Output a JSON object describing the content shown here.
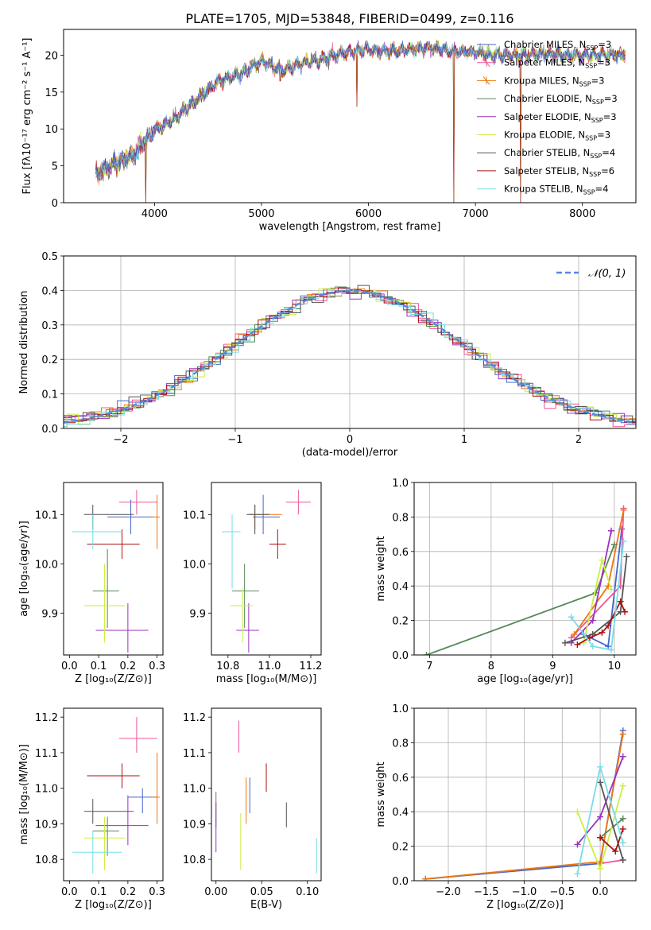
{
  "figure_title": "PLATE=1705, MJD=53848, FIBERID=0499, z=0.116",
  "colors": [
    "#4466cc",
    "#ee5599",
    "#ee7711",
    "#558855",
    "#9933bb",
    "#ccee44",
    "#555555",
    "#aa1111",
    "#77dde8"
  ],
  "chart_data": [
    {
      "type": "line",
      "id": "spectrum",
      "xlabel": "wavelength [Angstrom, rest frame]",
      "ylabel": "Flux [fλ10⁻¹⁷ erg cm⁻² s⁻¹ A⁻¹]",
      "xlim": [
        3150,
        8500
      ],
      "ylim": [
        0,
        23.5
      ],
      "xticks": [
        4000,
        5000,
        6000,
        7000,
        8000
      ],
      "yticks": [
        0,
        5,
        10,
        15,
        20
      ],
      "legend_position": "upper right",
      "series": [
        {
          "name": "Chabrier MILES, N",
          "sub": "SSP",
          "eq": "=3"
        },
        {
          "name": "Salpeter MILES, N",
          "sub": "SSP",
          "eq": "=3"
        },
        {
          "name": "Kroupa MILES, N",
          "sub": "SSP",
          "eq": "=3"
        },
        {
          "name": "Chabrier ELODIE, N",
          "sub": "SSP",
          "eq": "=3"
        },
        {
          "name": "Salpeter ELODIE, N",
          "sub": "SSP",
          "eq": "=3"
        },
        {
          "name": "Kroupa ELODIE, N",
          "sub": "SSP",
          "eq": "=3"
        },
        {
          "name": "Chabrier STELIB, N",
          "sub": "SSP",
          "eq": "=4"
        },
        {
          "name": "Salpeter STELIB, N",
          "sub": "SSP",
          "eq": "=6"
        },
        {
          "name": "Kroupa STELIB, N",
          "sub": "SSP",
          "eq": "=4"
        }
      ],
      "envelope": {
        "x": [
          3450,
          3600,
          3800,
          4000,
          4200,
          4400,
          4600,
          4800,
          5000,
          5200,
          5400,
          5600,
          5800,
          6000,
          6200,
          6400,
          6600,
          6800,
          7000,
          7200,
          7400,
          7600,
          7800,
          8000,
          8200,
          8400
        ],
        "y": [
          4.0,
          5.0,
          6.5,
          9.8,
          11.5,
          14.0,
          16.5,
          17.5,
          19.2,
          18.0,
          19.0,
          19.5,
          20.5,
          20.8,
          20.5,
          20.8,
          21.0,
          20.5,
          20.3,
          20.0,
          20.0,
          20.2,
          20.0,
          20.0,
          20.0,
          20.0
        ]
      },
      "drops": [
        [
          3920,
          0
        ],
        [
          6800,
          0
        ],
        [
          7420,
          0
        ],
        [
          5890,
          13.0
        ],
        [
          5175,
          16.5
        ]
      ]
    },
    {
      "type": "histogram",
      "id": "residuals",
      "xlabel": "(data-model)/error",
      "ylabel": "Normed distribution",
      "xlim": [
        -2.5,
        2.5
      ],
      "ylim": [
        0,
        0.5
      ],
      "xticks": [
        -2,
        -1,
        0,
        1,
        2
      ],
      "xticklabels": [
        "−2",
        "−1",
        "0",
        "1",
        "2"
      ],
      "yticks": [
        0.0,
        0.1,
        0.2,
        0.3,
        0.4,
        0.5
      ],
      "yticklabels": [
        "0.0",
        "0.1",
        "0.2",
        "0.3",
        "0.4",
        "0.5"
      ],
      "grid": true,
      "bin_width": 0.1,
      "reference_curve": {
        "name": "𝒩(0, 1)",
        "mean": 0,
        "sigma": 1,
        "legend_position": "upper right"
      }
    },
    {
      "type": "scatter",
      "id": "age-vs-Z",
      "xlabel": "Z [log₁₀(Z/Z⊙)]",
      "ylabel": "age  [log₁₀(age/yr)]",
      "xlim": [
        -0.02,
        0.32
      ],
      "ylim": [
        9.815,
        10.165
      ],
      "xticks": [
        0.0,
        0.1,
        0.2,
        0.3
      ],
      "xticklabels": [
        "0.0",
        "0.1",
        "0.2",
        "0.3"
      ],
      "yticks": [
        9.9,
        10.0,
        10.1
      ],
      "yticklabels": [
        "9.9",
        "10.0",
        "10.1"
      ],
      "points": [
        {
          "x": 0.21,
          "y": 10.095,
          "xerr": [
            0.13,
            0.29
          ],
          "yerr": [
            10.06,
            10.13
          ]
        },
        {
          "x": 0.23,
          "y": 10.125,
          "xerr": [
            0.17,
            0.3
          ],
          "yerr": [
            10.1,
            10.15
          ]
        },
        {
          "x": 0.3,
          "y": 10.095,
          "xerr": [
            0.28,
            0.31
          ],
          "yerr": [
            10.03,
            10.14
          ]
        },
        {
          "x": 0.13,
          "y": 9.945,
          "xerr": [
            0.08,
            0.17
          ],
          "yerr": [
            9.87,
            10.03
          ]
        },
        {
          "x": 0.2,
          "y": 9.865,
          "xerr": [
            0.09,
            0.27
          ],
          "yerr": [
            9.82,
            9.92
          ]
        },
        {
          "x": 0.12,
          "y": 9.915,
          "xerr": [
            0.05,
            0.19
          ],
          "yerr": [
            9.84,
            10.0
          ]
        },
        {
          "x": 0.08,
          "y": 10.1,
          "xerr": [
            0.05,
            0.22
          ],
          "yerr": [
            10.07,
            10.12
          ]
        },
        {
          "x": 0.18,
          "y": 10.04,
          "xerr": [
            0.06,
            0.24
          ],
          "yerr": [
            10.01,
            10.07
          ]
        },
        {
          "x": 0.08,
          "y": 10.065,
          "xerr": [
            0.01,
            0.18
          ],
          "yerr": [
            10.03,
            10.1
          ]
        }
      ]
    },
    {
      "type": "scatter",
      "id": "age-vs-mass",
      "xlabel": "mass [log₁₀(M/M⊙)]",
      "ylabel": "",
      "xlim": [
        10.72,
        11.25
      ],
      "ylim": [
        9.815,
        10.165
      ],
      "xticks": [
        10.8,
        11.0,
        11.2
      ],
      "xticklabels": [
        "10.8",
        "11.0",
        "11.2"
      ],
      "yticks": [
        9.9,
        10.0,
        10.1
      ],
      "yticklabels": [
        "9.9",
        "10.0",
        "10.1"
      ],
      "points": [
        {
          "x": 10.97,
          "y": 10.095,
          "xerr": [
            10.92,
            11.05
          ],
          "yerr": [
            10.06,
            10.14
          ]
        },
        {
          "x": 11.14,
          "y": 10.125,
          "xerr": [
            11.08,
            11.2
          ],
          "yerr": [
            10.1,
            10.15
          ]
        },
        {
          "x": 10.93,
          "y": 10.1,
          "xerr": [
            10.9,
            11.06
          ],
          "yerr": [
            10.07,
            10.12
          ]
        },
        {
          "x": 10.88,
          "y": 9.945,
          "xerr": [
            10.82,
            10.95
          ],
          "yerr": [
            9.87,
            10.0
          ]
        },
        {
          "x": 10.9,
          "y": 9.865,
          "xerr": [
            10.84,
            10.95
          ],
          "yerr": [
            9.82,
            9.92
          ]
        },
        {
          "x": 10.87,
          "y": 9.915,
          "xerr": [
            10.81,
            10.92
          ],
          "yerr": [
            9.84,
            9.95
          ]
        },
        {
          "x": 10.93,
          "y": 10.1,
          "xerr": [
            10.89,
            11.0
          ],
          "yerr": [
            10.06,
            10.12
          ]
        },
        {
          "x": 11.04,
          "y": 10.04,
          "xerr": [
            11.0,
            11.08
          ],
          "yerr": [
            10.01,
            10.07
          ]
        },
        {
          "x": 10.82,
          "y": 10.065,
          "xerr": [
            10.77,
            10.86
          ],
          "yerr": [
            9.95,
            10.1
          ]
        }
      ]
    },
    {
      "type": "line",
      "id": "massweight-vs-age",
      "xlabel": "age  [log₁₀(age/yr)]",
      "ylabel": "mass weight",
      "xlim": [
        6.75,
        10.35
      ],
      "ylim": [
        0,
        1
      ],
      "xticks": [
        7,
        8,
        9,
        10
      ],
      "xticklabels": [
        "7",
        "8",
        "9",
        "10"
      ],
      "yticks": [
        0.0,
        0.2,
        0.4,
        0.6,
        0.8,
        1.0
      ],
      "yticklabels": [
        "0.0",
        "0.2",
        "0.4",
        "0.6",
        "0.8",
        "1.0"
      ],
      "grid": true,
      "series": [
        {
          "x": [
            9.5,
            9.9,
            10.12
          ],
          "y": [
            0.12,
            0.05,
            0.73
          ]
        },
        {
          "x": [
            9.3,
            10.1,
            10.15
          ],
          "y": [
            0.1,
            0.4,
            0.85
          ]
        },
        {
          "x": [
            9.35,
            9.9,
            10.15
          ],
          "y": [
            0.12,
            0.4,
            0.84
          ]
        },
        {
          "x": [
            6.95,
            9.7,
            10.0
          ],
          "y": [
            0.0,
            0.36,
            0.64
          ]
        },
        {
          "x": [
            9.3,
            9.65,
            9.95
          ],
          "y": [
            0.07,
            0.2,
            0.72
          ]
        },
        {
          "x": [
            9.5,
            9.8,
            9.95
          ],
          "y": [
            0.07,
            0.55,
            0.38
          ]
        },
        {
          "x": [
            9.2,
            9.65,
            10.1,
            10.2
          ],
          "y": [
            0.07,
            0.12,
            0.25,
            0.57
          ]
        },
        {
          "x": [
            9.4,
            9.6,
            9.8,
            9.9,
            10.1,
            10.17
          ],
          "y": [
            0.06,
            0.1,
            0.13,
            0.17,
            0.31,
            0.25
          ]
        },
        {
          "x": [
            9.3,
            9.65,
            9.95,
            10.15
          ],
          "y": [
            0.22,
            0.05,
            0.03,
            0.66
          ]
        }
      ]
    },
    {
      "type": "scatter",
      "id": "mass-vs-Z",
      "xlabel": "Z [log₁₀(Z/Z⊙)]",
      "ylabel": "mass [log₁₀(M/M⊙)]",
      "xlim": [
        -0.02,
        0.32
      ],
      "ylim": [
        10.74,
        11.225
      ],
      "xticks": [
        0.0,
        0.1,
        0.2,
        0.3
      ],
      "xticklabels": [
        "0.0",
        "0.1",
        "0.2",
        "0.3"
      ],
      "yticks": [
        10.8,
        10.9,
        11.0,
        11.1,
        11.2
      ],
      "yticklabels": [
        "10.8",
        "10.9",
        "11.0",
        "11.1",
        "11.2"
      ],
      "points": [
        {
          "x": 0.25,
          "y": 10.975,
          "xerr": [
            0.2,
            0.3
          ],
          "yerr": [
            10.93,
            11.0
          ]
        },
        {
          "x": 0.23,
          "y": 11.14,
          "xerr": [
            0.17,
            0.3
          ],
          "yerr": [
            11.1,
            11.2
          ]
        },
        {
          "x": 0.3,
          "y": 10.975,
          "xerr": [
            0.28,
            0.31
          ],
          "yerr": [
            10.9,
            11.1
          ]
        },
        {
          "x": 0.13,
          "y": 10.88,
          "xerr": [
            0.08,
            0.17
          ],
          "yerr": [
            10.81,
            10.92
          ]
        },
        {
          "x": 0.2,
          "y": 10.895,
          "xerr": [
            0.09,
            0.27
          ],
          "yerr": [
            10.84,
            10.98
          ]
        },
        {
          "x": 0.12,
          "y": 10.86,
          "xerr": [
            0.05,
            0.19
          ],
          "yerr": [
            10.77,
            10.92
          ]
        },
        {
          "x": 0.08,
          "y": 10.935,
          "xerr": [
            0.05,
            0.22
          ],
          "yerr": [
            10.9,
            10.97
          ]
        },
        {
          "x": 0.18,
          "y": 11.035,
          "xerr": [
            0.06,
            0.24
          ],
          "yerr": [
            11.0,
            11.07
          ]
        },
        {
          "x": 0.08,
          "y": 10.82,
          "xerr": [
            0.01,
            0.18
          ],
          "yerr": [
            10.76,
            10.88
          ]
        }
      ]
    },
    {
      "type": "scatter",
      "id": "mass-vs-EBV",
      "xlabel": "E(B-V)",
      "ylabel": "",
      "xlim": [
        -0.005,
        0.115
      ],
      "ylim": [
        10.74,
        11.225
      ],
      "xticks": [
        0.0,
        0.05,
        0.1
      ],
      "xticklabels": [
        "0.00",
        "0.05",
        "0.10"
      ],
      "yticks": [
        10.8,
        10.9,
        11.0,
        11.1,
        11.2
      ],
      "yticklabels": [
        "10.8",
        "10.9",
        "11.0",
        "11.1",
        "11.2"
      ],
      "points": [
        {
          "x": 0.037,
          "y": 10.975,
          "yerr": [
            10.93,
            11.03
          ]
        },
        {
          "x": 0.025,
          "y": 11.14,
          "yerr": [
            11.1,
            11.19
          ]
        },
        {
          "x": 0.033,
          "y": 10.975,
          "yerr": [
            10.9,
            11.03
          ]
        },
        {
          "x": 0.0,
          "y": 10.94,
          "yerr": [
            10.89,
            10.99
          ]
        },
        {
          "x": 0.0,
          "y": 10.895,
          "yerr": [
            10.82,
            10.96
          ]
        },
        {
          "x": 0.027,
          "y": 10.85,
          "yerr": [
            10.77,
            10.93
          ]
        },
        {
          "x": 0.077,
          "y": 10.925,
          "yerr": [
            10.89,
            10.96
          ]
        },
        {
          "x": 0.055,
          "y": 11.035,
          "yerr": [
            10.99,
            11.07
          ]
        },
        {
          "x": 0.11,
          "y": 10.81,
          "yerr": [
            10.76,
            10.86
          ]
        }
      ]
    },
    {
      "type": "line",
      "id": "massweight-vs-Z",
      "xlabel": "Z [log₁₀(Z/Z⊙)]",
      "ylabel": "mass weight",
      "xlim": [
        -2.45,
        0.47
      ],
      "ylim": [
        0,
        1
      ],
      "xticks": [
        -2.0,
        -1.5,
        -1.0,
        -0.5,
        0.0
      ],
      "xticklabels": [
        "−2.0",
        "−1.5",
        "−1.0",
        "−0.5",
        "0.0"
      ],
      "yticks": [
        0.0,
        0.2,
        0.4,
        0.6,
        0.8,
        1.0
      ],
      "yticklabels": [
        "0.0",
        "0.2",
        "0.4",
        "0.6",
        "0.8",
        "1.0"
      ],
      "grid": true,
      "series": [
        {
          "x": [
            -2.3,
            0.0,
            0.3
          ],
          "y": [
            0.01,
            0.1,
            0.87
          ]
        },
        {
          "x": [
            0.0,
            0.3
          ],
          "y": [
            0.1,
            0.12
          ]
        },
        {
          "x": [
            -2.3,
            0.0,
            0.3
          ],
          "y": [
            0.01,
            0.11,
            0.85
          ]
        },
        {
          "x": [
            0.0,
            0.3
          ],
          "y": [
            0.25,
            0.36
          ]
        },
        {
          "x": [
            -0.3,
            0.0,
            0.3
          ],
          "y": [
            0.21,
            0.37,
            0.72
          ]
        },
        {
          "x": [
            -0.3,
            0.0,
            0.3
          ],
          "y": [
            0.4,
            0.07,
            0.55
          ]
        },
        {
          "x": [
            0.0,
            0.3
          ],
          "y": [
            0.57,
            0.12
          ]
        },
        {
          "x": [
            0.0,
            0.2,
            0.3
          ],
          "y": [
            0.25,
            0.17,
            0.3
          ]
        },
        {
          "x": [
            -0.3,
            0.0,
            0.3
          ],
          "y": [
            0.04,
            0.66,
            0.22
          ]
        }
      ]
    }
  ]
}
